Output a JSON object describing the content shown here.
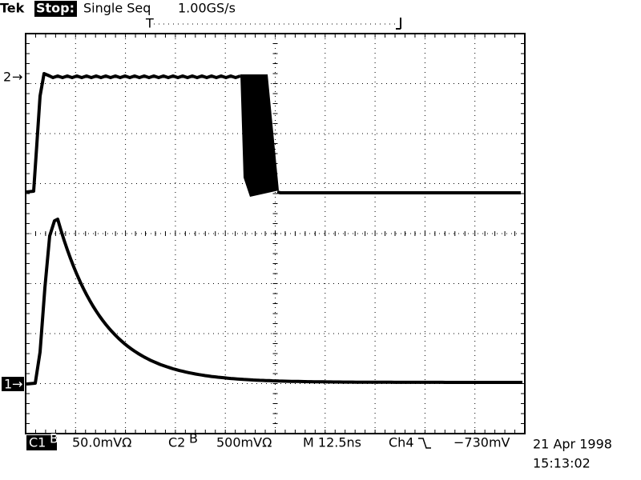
{
  "header": {
    "brand": "Tek",
    "state": "Stop:",
    "mode": "Single Seq",
    "sample_rate": "1.00GS/s",
    "trigger_marker": "T"
  },
  "markers": {
    "channel_2": "2",
    "channel_1": "1"
  },
  "footer": {
    "ch1": {
      "label": "C1",
      "scale": "50.0mVΩ"
    },
    "ch2": {
      "label": "C2",
      "scale": "500mVΩ"
    },
    "timebase": "M 12.5ns",
    "trigger": {
      "source": "Ch4",
      "level": "−730mV"
    },
    "date": "21 Apr 1998",
    "time": "15:13:02"
  }
}
